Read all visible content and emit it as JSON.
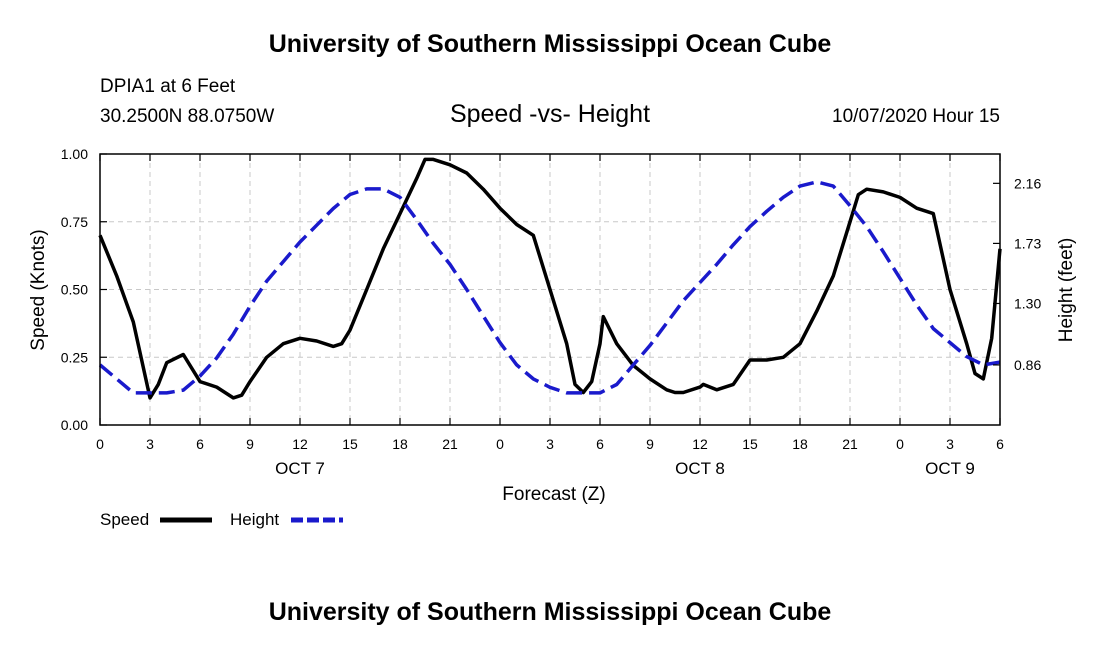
{
  "header": {
    "title": "University of Southern Mississippi Ocean Cube",
    "station": "DPIA1 at 6 Feet",
    "coords": "30.2500N 88.0750W",
    "subtitle": "Speed -vs- Height",
    "datetime": "10/07/2020 Hour 15"
  },
  "footer": {
    "title": "University of Southern Mississippi Ocean Cube"
  },
  "chart_data": {
    "type": "line",
    "xlabel": "Forecast (Z)",
    "ylabel_left": "Speed (Knots)",
    "ylabel_right": "Height (feet)",
    "x_range": [
      0,
      54
    ],
    "ylim_left": [
      0,
      1.0
    ],
    "ylim_right": [
      0.43,
      2.37
    ],
    "x_ticks": [
      0,
      3,
      6,
      9,
      12,
      15,
      18,
      21,
      24,
      27,
      30,
      33,
      36,
      39,
      42,
      45,
      48,
      51,
      54
    ],
    "x_tick_labels": [
      "0",
      "3",
      "6",
      "9",
      "12",
      "15",
      "18",
      "21",
      "0",
      "3",
      "6",
      "9",
      "12",
      "15",
      "18",
      "21",
      "0",
      "3",
      "6"
    ],
    "y_ticks_left": [
      0.0,
      0.25,
      0.5,
      0.75,
      1.0
    ],
    "y_tick_labels_left": [
      "0.00",
      "0.25",
      "0.50",
      "0.75",
      "1.00"
    ],
    "y_ticks_right": [
      0.86,
      1.3,
      1.73,
      2.16
    ],
    "y_tick_labels_right": [
      "0.86",
      "1.30",
      "1.73",
      "2.16"
    ],
    "date_labels": [
      {
        "x": 12,
        "label": "OCT 7"
      },
      {
        "x": 36,
        "label": "OCT 8"
      },
      {
        "x": 51,
        "label": "OCT 9"
      }
    ],
    "grid": true,
    "series": [
      {
        "name": "Speed",
        "axis": "left",
        "color": "#000000",
        "dash": "solid",
        "points": [
          [
            0,
            0.7
          ],
          [
            1,
            0.55
          ],
          [
            2,
            0.38
          ],
          [
            3,
            0.1
          ],
          [
            3.5,
            0.15
          ],
          [
            4,
            0.23
          ],
          [
            5,
            0.26
          ],
          [
            6,
            0.16
          ],
          [
            7,
            0.14
          ],
          [
            8,
            0.1
          ],
          [
            8.5,
            0.11
          ],
          [
            9,
            0.16
          ],
          [
            10,
            0.25
          ],
          [
            11,
            0.3
          ],
          [
            12,
            0.32
          ],
          [
            13,
            0.31
          ],
          [
            14,
            0.29
          ],
          [
            14.5,
            0.3
          ],
          [
            15,
            0.35
          ],
          [
            16,
            0.5
          ],
          [
            17,
            0.65
          ],
          [
            18,
            0.78
          ],
          [
            19,
            0.91
          ],
          [
            19.5,
            0.98
          ],
          [
            20,
            0.98
          ],
          [
            21,
            0.96
          ],
          [
            22,
            0.93
          ],
          [
            23,
            0.87
          ],
          [
            24,
            0.8
          ],
          [
            25,
            0.74
          ],
          [
            26,
            0.7
          ],
          [
            27,
            0.5
          ],
          [
            28,
            0.3
          ],
          [
            28.5,
            0.15
          ],
          [
            29,
            0.12
          ],
          [
            29.5,
            0.16
          ],
          [
            30,
            0.3
          ],
          [
            30.2,
            0.4
          ],
          [
            31,
            0.3
          ],
          [
            32,
            0.22
          ],
          [
            33,
            0.17
          ],
          [
            34,
            0.13
          ],
          [
            34.5,
            0.12
          ],
          [
            35,
            0.12
          ],
          [
            36,
            0.14
          ],
          [
            36.2,
            0.15
          ],
          [
            37,
            0.13
          ],
          [
            38,
            0.15
          ],
          [
            39,
            0.24
          ],
          [
            40,
            0.24
          ],
          [
            41,
            0.25
          ],
          [
            42,
            0.3
          ],
          [
            43,
            0.42
          ],
          [
            44,
            0.55
          ],
          [
            45,
            0.75
          ],
          [
            45.5,
            0.85
          ],
          [
            46,
            0.87
          ],
          [
            47,
            0.86
          ],
          [
            48,
            0.84
          ],
          [
            49,
            0.8
          ],
          [
            50,
            0.78
          ],
          [
            51,
            0.5
          ],
          [
            52,
            0.3
          ],
          [
            52.5,
            0.19
          ],
          [
            53,
            0.17
          ],
          [
            53.5,
            0.32
          ],
          [
            54,
            0.65
          ]
        ]
      },
      {
        "name": "Height",
        "axis": "right",
        "color": "#1a1acc",
        "dash": "dashed",
        "points": [
          [
            0,
            0.86
          ],
          [
            1,
            0.76
          ],
          [
            2,
            0.66
          ],
          [
            3,
            0.66
          ],
          [
            4,
            0.66
          ],
          [
            5,
            0.68
          ],
          [
            6,
            0.78
          ],
          [
            7,
            0.91
          ],
          [
            8,
            1.08
          ],
          [
            9,
            1.28
          ],
          [
            10,
            1.46
          ],
          [
            11,
            1.6
          ],
          [
            12,
            1.74
          ],
          [
            13,
            1.86
          ],
          [
            14,
            1.98
          ],
          [
            15,
            2.08
          ],
          [
            16,
            2.12
          ],
          [
            17,
            2.12
          ],
          [
            18,
            2.06
          ],
          [
            19,
            1.9
          ],
          [
            20,
            1.73
          ],
          [
            21,
            1.58
          ],
          [
            22,
            1.4
          ],
          [
            23,
            1.21
          ],
          [
            24,
            1.02
          ],
          [
            25,
            0.86
          ],
          [
            26,
            0.76
          ],
          [
            27,
            0.7
          ],
          [
            28,
            0.66
          ],
          [
            29,
            0.66
          ],
          [
            30,
            0.66
          ],
          [
            31,
            0.72
          ],
          [
            32,
            0.86
          ],
          [
            33,
            1.0
          ],
          [
            34,
            1.16
          ],
          [
            35,
            1.32
          ],
          [
            36,
            1.45
          ],
          [
            37,
            1.58
          ],
          [
            38,
            1.72
          ],
          [
            39,
            1.85
          ],
          [
            40,
            1.96
          ],
          [
            41,
            2.06
          ],
          [
            42,
            2.14
          ],
          [
            43,
            2.17
          ],
          [
            44,
            2.14
          ],
          [
            45,
            2.0
          ],
          [
            46,
            1.85
          ],
          [
            47,
            1.67
          ],
          [
            48,
            1.48
          ],
          [
            49,
            1.29
          ],
          [
            50,
            1.12
          ],
          [
            51,
            1.02
          ],
          [
            52,
            0.92
          ],
          [
            53,
            0.86
          ],
          [
            54,
            0.88
          ]
        ]
      }
    ]
  }
}
